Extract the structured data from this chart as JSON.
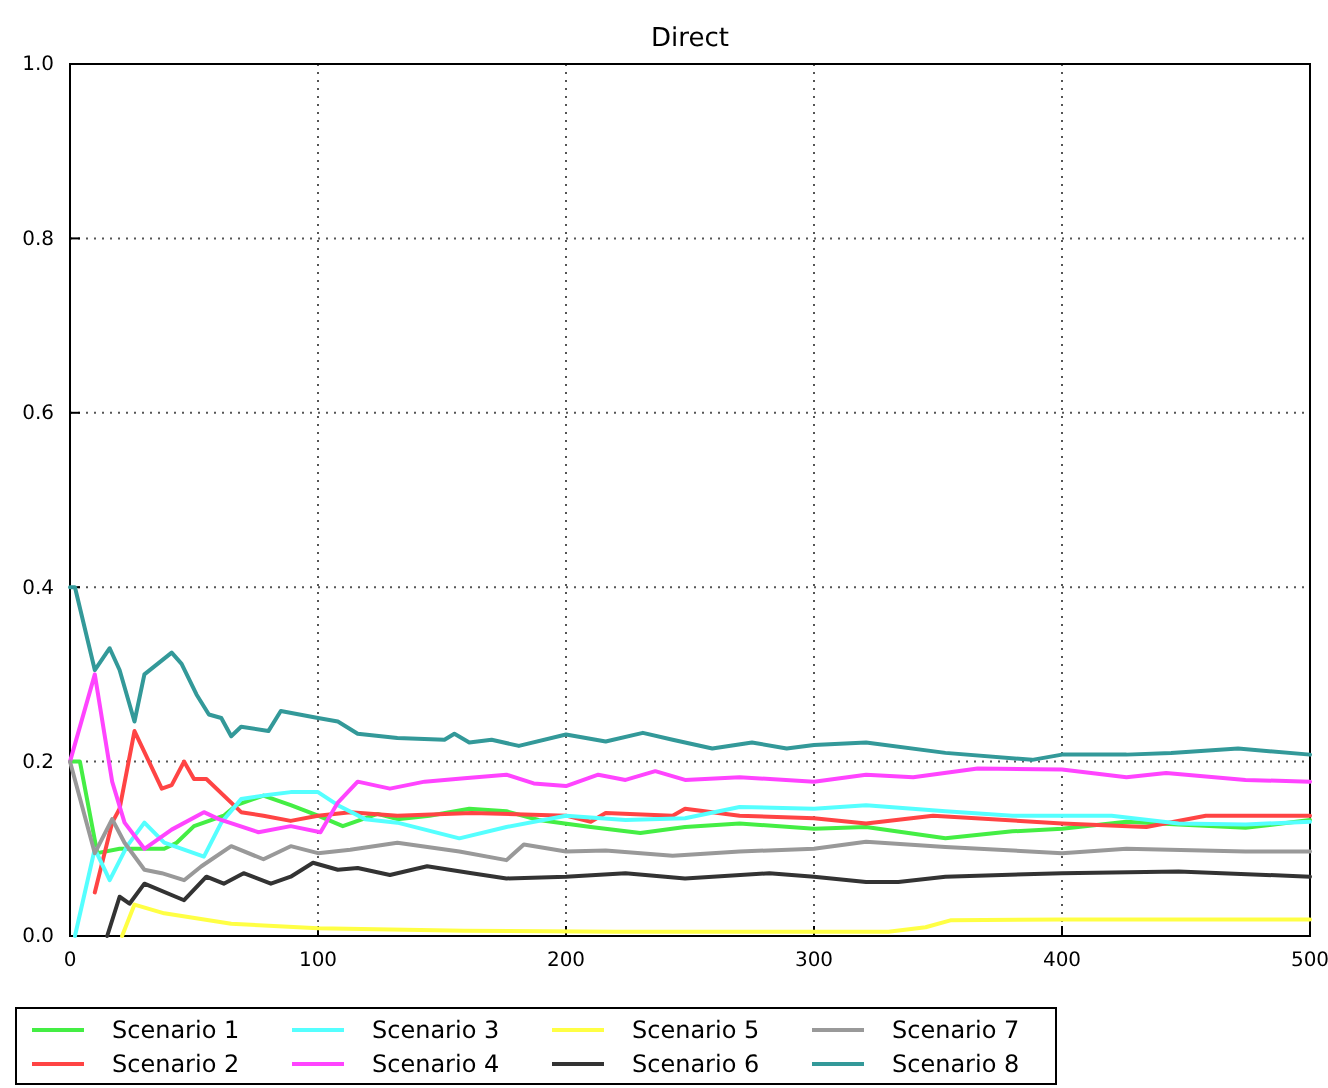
{
  "chart_data": {
    "type": "line",
    "title": "Direct",
    "xlim": [
      0,
      500
    ],
    "xticks": [
      0,
      100,
      200,
      300,
      400,
      500
    ],
    "ylim": [
      0,
      1
    ],
    "yticks": [
      {
        "value": 0,
        "label": "0.0"
      },
      {
        "value": 0.2,
        "label": "0.2"
      },
      {
        "value": 0.4,
        "label": "0.4"
      },
      {
        "value": 0.6,
        "label": "0.6"
      },
      {
        "value": 0.8,
        "label": "0.8"
      },
      {
        "value": 1,
        "label": "1.0"
      }
    ],
    "grid": true,
    "legend": "bottom",
    "marker": "none",
    "line_style": "solid",
    "series": [
      {
        "name": "Scenario 1",
        "color": "#44ee44",
        "x": [
          0,
          4,
          11,
          20,
          30,
          38,
          43,
          50,
          62,
          67,
          78,
          89,
          100,
          110,
          124,
          132,
          145,
          161,
          176,
          189,
          210,
          230,
          248,
          270,
          300,
          321,
          353,
          380,
          400,
          426,
          447,
          474,
          500
        ],
        "values": [
          0.2,
          0.2,
          0.095,
          0.1,
          0.1,
          0.1,
          0.107,
          0.126,
          0.138,
          0.15,
          0.161,
          0.15,
          0.138,
          0.126,
          0.14,
          0.134,
          0.138,
          0.146,
          0.143,
          0.133,
          0.125,
          0.118,
          0.125,
          0.129,
          0.123,
          0.125,
          0.112,
          0.12,
          0.123,
          0.131,
          0.128,
          0.124,
          0.133
        ]
      },
      {
        "name": "Scenario 2",
        "color": "#ff4444",
        "x": [
          10,
          17,
          20,
          26,
          37,
          41,
          46,
          50,
          55,
          69,
          78,
          89,
          100,
          113,
          132,
          162,
          200,
          210,
          216,
          243,
          248,
          270,
          300,
          321,
          348,
          400,
          434,
          458,
          500
        ],
        "values": [
          0.05,
          0.13,
          0.146,
          0.235,
          0.169,
          0.173,
          0.2,
          0.18,
          0.18,
          0.142,
          0.138,
          0.132,
          0.138,
          0.142,
          0.138,
          0.141,
          0.138,
          0.131,
          0.141,
          0.138,
          0.146,
          0.138,
          0.135,
          0.129,
          0.138,
          0.129,
          0.125,
          0.138,
          0.138
        ]
      },
      {
        "name": "Scenario 3",
        "color": "#55ffff",
        "x": [
          2,
          10,
          16,
          23,
          30,
          38,
          54,
          61,
          69,
          78,
          89,
          100,
          108,
          119,
          132,
          157,
          176,
          200,
          224,
          248,
          270,
          300,
          321,
          353,
          380,
          420,
          447,
          474,
          500
        ],
        "values": [
          0,
          0.1,
          0.064,
          0.103,
          0.13,
          0.107,
          0.091,
          0.13,
          0.157,
          0.161,
          0.165,
          0.165,
          0.15,
          0.134,
          0.13,
          0.112,
          0.125,
          0.138,
          0.133,
          0.135,
          0.148,
          0.146,
          0.15,
          0.143,
          0.138,
          0.138,
          0.129,
          0.128,
          0.131
        ]
      },
      {
        "name": "Scenario 4",
        "color": "#ff44ff",
        "x": [
          0,
          10,
          17,
          22,
          30,
          41,
          54,
          60,
          76,
          89,
          101,
          108,
          116,
          129,
          143,
          159,
          176,
          187,
          200,
          213,
          224,
          236,
          248,
          270,
          300,
          321,
          340,
          366,
          400,
          426,
          442,
          474,
          500
        ],
        "values": [
          0.2,
          0.3,
          0.177,
          0.13,
          0.1,
          0.122,
          0.142,
          0.134,
          0.119,
          0.126,
          0.119,
          0.153,
          0.177,
          0.169,
          0.177,
          0.181,
          0.185,
          0.175,
          0.172,
          0.185,
          0.179,
          0.189,
          0.179,
          0.182,
          0.177,
          0.185,
          0.182,
          0.192,
          0.191,
          0.182,
          0.187,
          0.179,
          0.177
        ]
      },
      {
        "name": "Scenario 5",
        "color": "#ffff44",
        "x": [
          21,
          26,
          38,
          65,
          100,
          159,
          220,
          300,
          330,
          345,
          355,
          400,
          500
        ],
        "values": [
          0,
          0.036,
          0.026,
          0.014,
          0.009,
          0.006,
          0.005,
          0.005,
          0.005,
          0.01,
          0.018,
          0.019,
          0.019
        ]
      },
      {
        "name": "Scenario 6",
        "color": "#333333",
        "x": [
          15,
          20,
          24,
          30,
          46,
          55,
          62,
          70,
          81,
          89,
          98,
          108,
          116,
          129,
          144,
          162,
          176,
          200,
          224,
          248,
          282,
          300,
          321,
          334,
          353,
          400,
          447,
          500
        ],
        "values": [
          0,
          0.045,
          0.037,
          0.06,
          0.041,
          0.068,
          0.06,
          0.072,
          0.06,
          0.068,
          0.084,
          0.076,
          0.078,
          0.07,
          0.08,
          0.072,
          0.066,
          0.068,
          0.072,
          0.066,
          0.072,
          0.068,
          0.062,
          0.062,
          0.068,
          0.072,
          0.074,
          0.068
        ]
      },
      {
        "name": "Scenario 7",
        "color": "#999999",
        "x": [
          0,
          10,
          17,
          22,
          30,
          37,
          46,
          53,
          65,
          78,
          89,
          100,
          113,
          132,
          157,
          176,
          183,
          200,
          216,
          243,
          270,
          300,
          321,
          353,
          400,
          426,
          474,
          500
        ],
        "values": [
          0.2,
          0.095,
          0.134,
          0.107,
          0.076,
          0.072,
          0.064,
          0.08,
          0.103,
          0.088,
          0.103,
          0.095,
          0.099,
          0.107,
          0.097,
          0.087,
          0.105,
          0.097,
          0.098,
          0.092,
          0.097,
          0.1,
          0.108,
          0.102,
          0.095,
          0.1,
          0.097,
          0.097
        ]
      },
      {
        "name": "Scenario 8",
        "color": "#339999",
        "x": [
          0,
          2,
          10,
          16,
          20,
          26,
          30,
          41,
          45,
          51,
          56,
          61,
          65,
          69,
          80,
          85,
          100,
          108,
          116,
          132,
          151,
          155,
          161,
          170,
          181,
          200,
          216,
          231,
          243,
          259,
          275,
          289,
          300,
          321,
          353,
          388,
          400,
          426,
          444,
          471,
          500
        ],
        "values": [
          0.4,
          0.4,
          0.305,
          0.33,
          0.305,
          0.246,
          0.3,
          0.325,
          0.312,
          0.277,
          0.254,
          0.25,
          0.229,
          0.24,
          0.235,
          0.258,
          0.25,
          0.246,
          0.232,
          0.227,
          0.225,
          0.232,
          0.222,
          0.225,
          0.218,
          0.231,
          0.223,
          0.233,
          0.225,
          0.215,
          0.222,
          0.215,
          0.219,
          0.222,
          0.21,
          0.202,
          0.208,
          0.208,
          0.21,
          0.215,
          0.208
        ]
      }
    ]
  }
}
